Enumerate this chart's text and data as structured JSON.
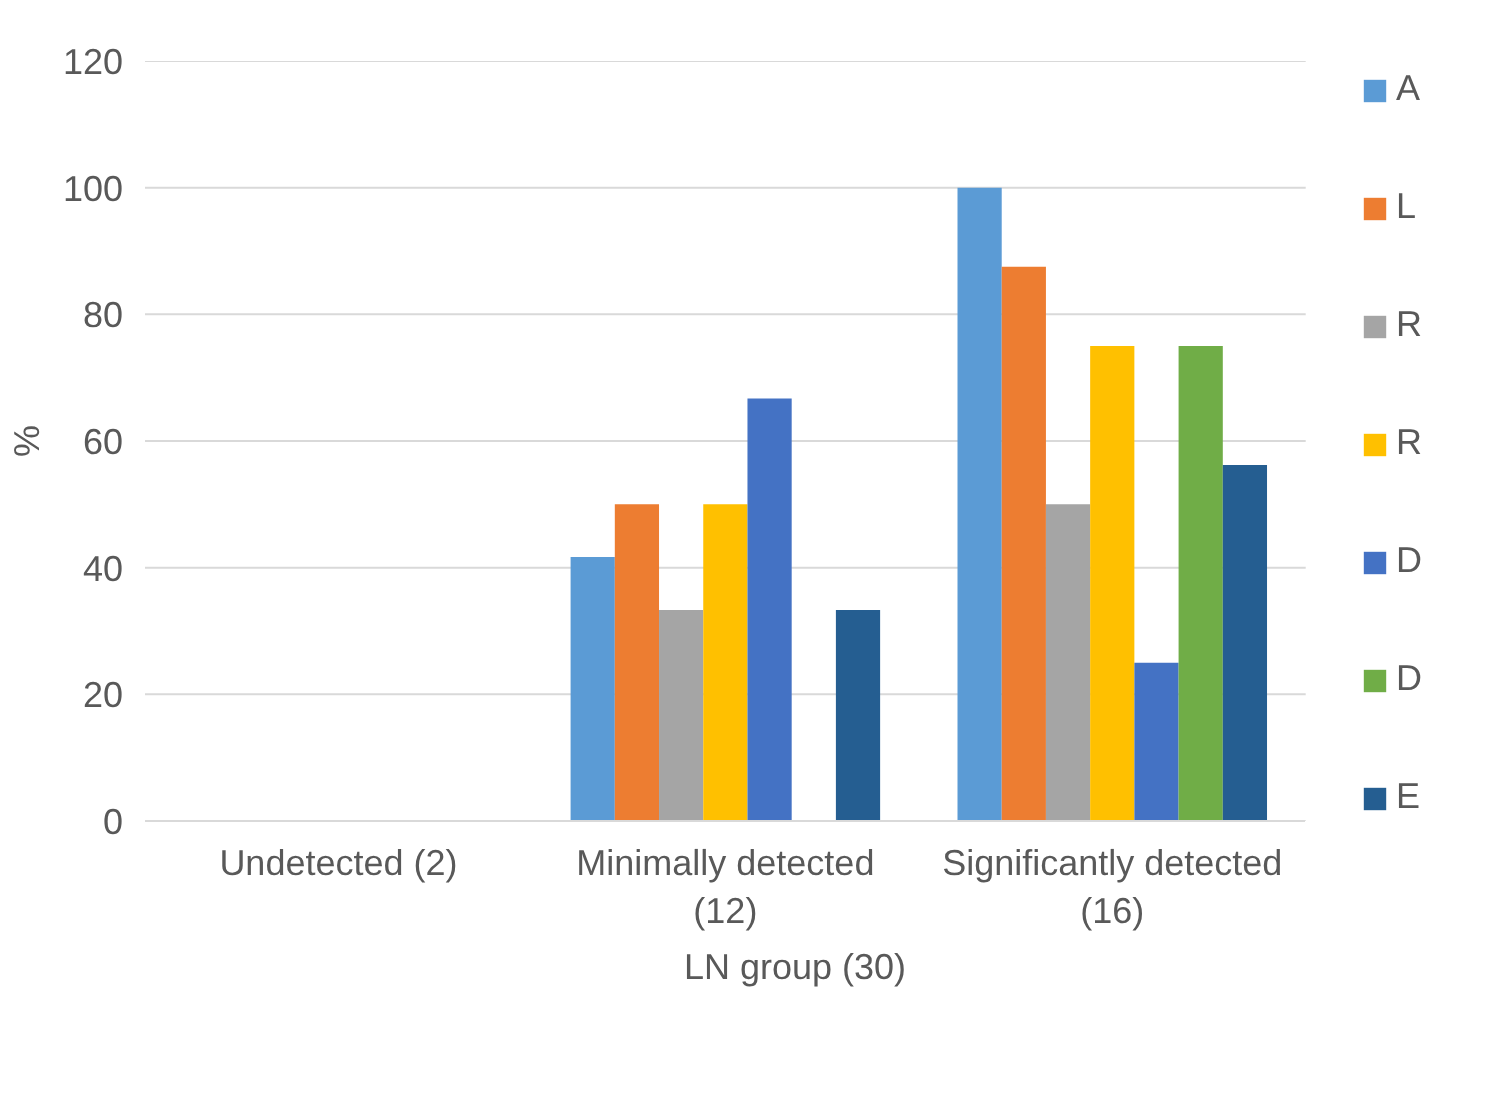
{
  "chart_data": {
    "type": "bar",
    "ylabel": "%",
    "xlabel": "LN group (30)",
    "categories": [
      "Undetected (2)",
      "Minimally detected (12)",
      "Significantly detected (16)"
    ],
    "series": [
      {
        "name": "A",
        "color": "#5b9bd5",
        "values": [
          0,
          41.7,
          100
        ]
      },
      {
        "name": "L",
        "color": "#ed7d31",
        "values": [
          0,
          50,
          87.5
        ]
      },
      {
        "name": "R",
        "color": "#a5a5a5",
        "values": [
          0,
          33.3,
          50
        ]
      },
      {
        "name": "R",
        "color": "#ffc000",
        "values": [
          0,
          50,
          75
        ]
      },
      {
        "name": "D",
        "color": "#4472c4",
        "values": [
          0,
          66.7,
          25
        ]
      },
      {
        "name": "D",
        "color": "#70ad47",
        "values": [
          0,
          0,
          75
        ]
      },
      {
        "name": "E",
        "color": "#255e91",
        "values": [
          0,
          33.3,
          56.2
        ]
      }
    ],
    "ylim": [
      0,
      120
    ],
    "yticks": [
      0,
      20,
      40,
      60,
      80,
      100,
      120
    ],
    "grid": "y",
    "legend": "right"
  }
}
